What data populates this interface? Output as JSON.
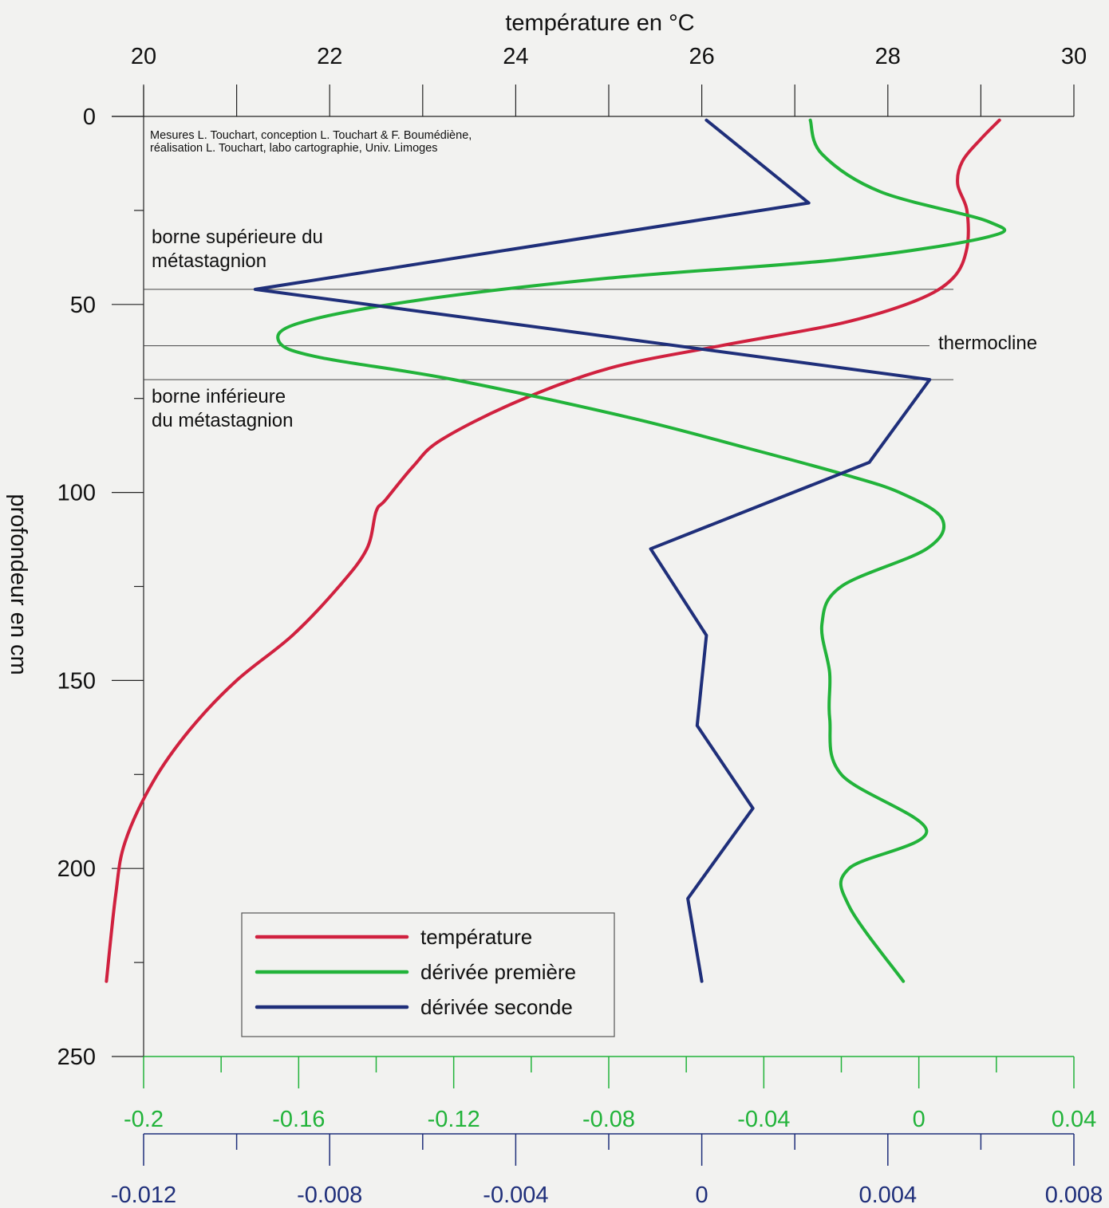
{
  "chart_data": {
    "type": "line",
    "title": "",
    "top_axis": {
      "label": "température en °C",
      "min": 20,
      "max": 30,
      "ticks": [
        "20",
        "22",
        "24",
        "26",
        "28",
        "30"
      ],
      "tick_values": [
        20,
        22,
        24,
        26,
        28,
        30
      ],
      "minor_step": 1
    },
    "left_axis": {
      "label": "profondeur en cm",
      "min": 0,
      "max": 250,
      "ticks": [
        "0",
        "50",
        "100",
        "150",
        "200",
        "250"
      ],
      "tick_values": [
        0,
        50,
        100,
        150,
        200,
        250
      ],
      "minor_step": 25,
      "reversed": true
    },
    "green_axis": {
      "min": -0.2,
      "max": 0.04,
      "ticks": [
        "-0.2",
        "-0.16",
        "-0.12",
        "-0.08",
        "-0.04",
        "0",
        "0.04"
      ],
      "tick_values": [
        -0.2,
        -0.16,
        -0.12,
        -0.08,
        -0.04,
        0,
        0.04
      ],
      "minor_step": 0.02,
      "color": "#22b33a"
    },
    "blue_axis": {
      "min": -0.012,
      "max": 0.008,
      "ticks": [
        "-0.012",
        "-0.008",
        "-0.004",
        "0",
        "0.004",
        "0.008"
      ],
      "tick_values": [
        -0.012,
        -0.008,
        -0.004,
        0,
        0.004,
        0.008
      ],
      "minor_step": 0.002,
      "color": "#1f2f7a"
    },
    "credits": [
      "Mesures L. Touchart, conception L. Touchart & F. Boumédiène,",
      "réalisation L. Touchart, labo cartographie, Univ. Limoges"
    ],
    "reference_lines": [
      {
        "depth": 46,
        "label": [
          "borne supérieure du",
          "métastagnion"
        ]
      },
      {
        "depth": 61,
        "label": [
          "thermocline"
        ]
      },
      {
        "depth": 70,
        "label": [
          "borne inférieure",
          "du métastagnion"
        ]
      }
    ],
    "series": [
      {
        "name": "température",
        "color": "#d0213f",
        "axis": "top",
        "points": [
          [
            29.2,
            1
          ],
          [
            29.0,
            6
          ],
          [
            28.8,
            12
          ],
          [
            28.75,
            18
          ],
          [
            28.85,
            25
          ],
          [
            28.85,
            35
          ],
          [
            28.7,
            43
          ],
          [
            28.3,
            49
          ],
          [
            27.5,
            55
          ],
          [
            26.2,
            61
          ],
          [
            25.0,
            67
          ],
          [
            24.0,
            76
          ],
          [
            23.2,
            86
          ],
          [
            22.9,
            93
          ],
          [
            22.6,
            102
          ],
          [
            22.5,
            105
          ],
          [
            22.4,
            115
          ],
          [
            22.1,
            125
          ],
          [
            21.6,
            138
          ],
          [
            21.0,
            150
          ],
          [
            20.5,
            163
          ],
          [
            20.1,
            177
          ],
          [
            19.8,
            193
          ],
          [
            19.7,
            207
          ],
          [
            19.6,
            230
          ]
        ]
      },
      {
        "name": "dérivée première",
        "color": "#22b33a",
        "axis": "green",
        "points": [
          [
            -0.028,
            1
          ],
          [
            -0.025,
            10
          ],
          [
            -0.01,
            20
          ],
          [
            0.018,
            28
          ],
          [
            0.018,
            32
          ],
          [
            -0.02,
            38
          ],
          [
            -0.08,
            43
          ],
          [
            -0.13,
            49
          ],
          [
            -0.16,
            55
          ],
          [
            -0.165,
            60
          ],
          [
            -0.155,
            64
          ],
          [
            -0.12,
            70
          ],
          [
            -0.075,
            80
          ],
          [
            -0.045,
            88
          ],
          [
            -0.02,
            95
          ],
          [
            -0.005,
            100
          ],
          [
            0.006,
            107
          ],
          [
            0.002,
            115
          ],
          [
            -0.02,
            125
          ],
          [
            -0.025,
            135
          ],
          [
            -0.023,
            148
          ],
          [
            -0.023,
            160
          ],
          [
            -0.02,
            175
          ],
          [
            0.002,
            190
          ],
          [
            -0.018,
            200
          ],
          [
            -0.018,
            210
          ],
          [
            -0.004,
            230
          ]
        ]
      },
      {
        "name": "dérivée seconde",
        "color": "#1f2f7a",
        "axis": "blue",
        "points": [
          [
            0.0001,
            1
          ],
          [
            0.0023,
            23
          ],
          [
            -0.0096,
            46
          ],
          [
            0.0049,
            70
          ],
          [
            0.0036,
            92
          ],
          [
            -0.0011,
            115
          ],
          [
            0.0001,
            138
          ],
          [
            -0.0001,
            162
          ],
          [
            0.0011,
            184
          ],
          [
            -0.0003,
            208
          ],
          [
            0.0,
            230
          ]
        ]
      }
    ],
    "legend": {
      "placement": "bottom-center"
    }
  }
}
